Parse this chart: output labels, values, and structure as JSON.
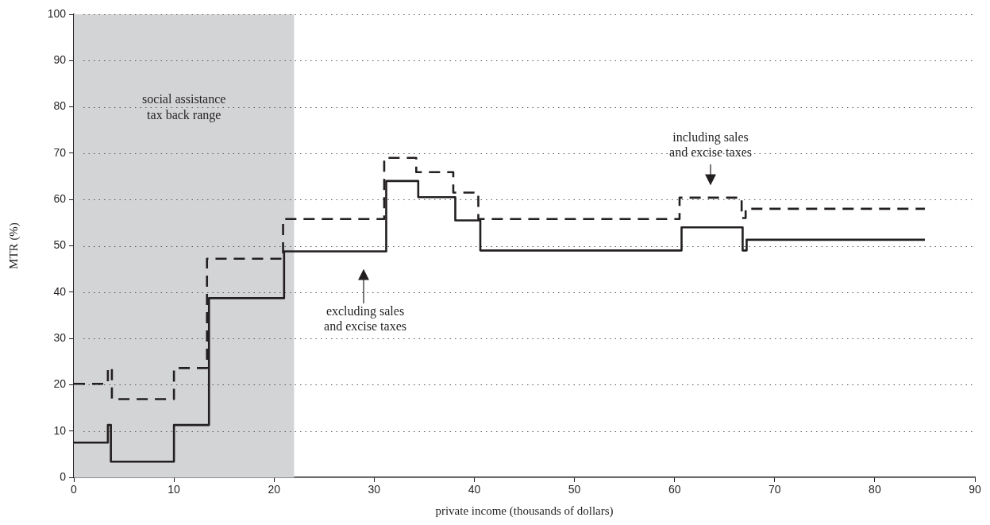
{
  "chart_data": {
    "type": "step",
    "xlabel": "private income (thousands of dollars)",
    "ylabel": "MTR (%)",
    "xlim": [
      0,
      90
    ],
    "xticks": [
      0,
      10,
      20,
      30,
      40,
      50,
      60,
      70,
      80,
      90
    ],
    "ylim": [
      0,
      100
    ],
    "yticks": [
      0,
      10,
      20,
      30,
      40,
      50,
      60,
      70,
      80,
      90,
      100
    ],
    "grid": "y",
    "legend": false,
    "bands": [
      {
        "axis": "x",
        "from": 0,
        "to": 22,
        "label": "social assistance\ntax back range",
        "color": "#d3d4d6"
      }
    ],
    "annotations": [
      "excluding sales\nand excise taxes",
      "including sales\nand excise taxes"
    ],
    "series": [
      {
        "color": "#231f20",
        "line_style": "solid",
        "x": [
          0,
          3.4,
          3.7,
          10,
          13.5,
          21,
          31.2,
          34.4,
          38.1,
          40.6,
          60.7,
          66.8,
          67.2,
          85
        ],
        "values": [
          7.5,
          11.3,
          3.4,
          11.3,
          38.7,
          48.8,
          64,
          60.5,
          55.5,
          49,
          54,
          49,
          51.3,
          51.3
        ]
      },
      {
        "color": "#231f20",
        "line_style": "dashed",
        "x": [
          0,
          3.4,
          3.8,
          10,
          13.3,
          20.9,
          31,
          34.2,
          37.9,
          40.4,
          60.5,
          66.7,
          67.1,
          85
        ],
        "values": [
          20.2,
          23.6,
          16.9,
          23.6,
          47.2,
          55.8,
          69,
          65.9,
          61.5,
          55.8,
          60.4,
          56,
          58,
          58
        ]
      }
    ]
  }
}
